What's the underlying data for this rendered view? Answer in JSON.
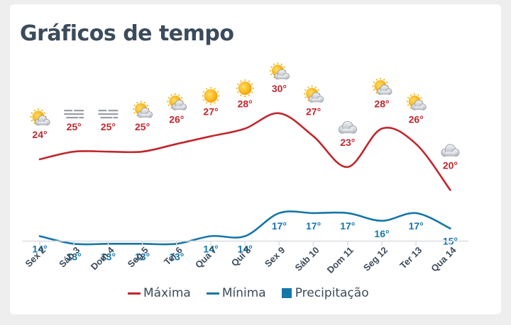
{
  "header": {
    "title": "Gráficos de tempo"
  },
  "legend": [
    {
      "label": "Máxima",
      "color": "#c0272d",
      "kind": "line"
    },
    {
      "label": "Mínima",
      "color": "#1576a8",
      "kind": "line"
    },
    {
      "label": "Precipitação",
      "color": "#1576a8",
      "kind": "box"
    }
  ],
  "chart_data": {
    "type": "line",
    "categories": [
      "Sex 2",
      "Sáb 3",
      "Dom 4",
      "Seg 5",
      "Ter 6",
      "Qua 7",
      "Qui 8",
      "Sex 9",
      "Sáb 10",
      "Dom 11",
      "Seg 12",
      "Ter 13",
      "Qua 14"
    ],
    "series": [
      {
        "name": "Máxima",
        "color": "#c0272d",
        "values": [
          24,
          25,
          25,
          25,
          26,
          27,
          28,
          30,
          27,
          23,
          28,
          26,
          20
        ],
        "labels": [
          "24°",
          "25°",
          "25°",
          "25°",
          "26°",
          "27°",
          "28°",
          "30°",
          "27°",
          "23°",
          "28°",
          "26°",
          "20°"
        ]
      },
      {
        "name": "Mínima",
        "color": "#1576a8",
        "values": [
          14,
          13,
          13,
          13,
          13,
          14,
          14,
          17,
          17,
          17,
          16,
          17,
          15
        ],
        "labels": [
          "14°",
          "13°",
          "13°",
          "13°",
          "13°",
          "14°",
          "14°",
          "17°",
          "17°",
          "17°",
          "16°",
          "17°",
          "15°"
        ]
      },
      {
        "name": "Precipitação",
        "color": "#1576a8",
        "values": [
          0,
          0,
          0,
          0,
          0,
          0,
          0,
          0,
          0,
          0,
          0,
          0,
          0
        ]
      }
    ],
    "icons": [
      "sun-cloud-icon",
      "fog-icon",
      "fog-icon",
      "sun-cloud-icon",
      "sun-cloud-icon",
      "sun-icon",
      "sun-icon",
      "sun-cloud-icon",
      "sun-cloud-icon",
      "cloud-icon",
      "sun-cloud-icon",
      "sun-cloud-icon",
      "cloud-icon"
    ],
    "grid": false,
    "legend_position": "bottom"
  }
}
